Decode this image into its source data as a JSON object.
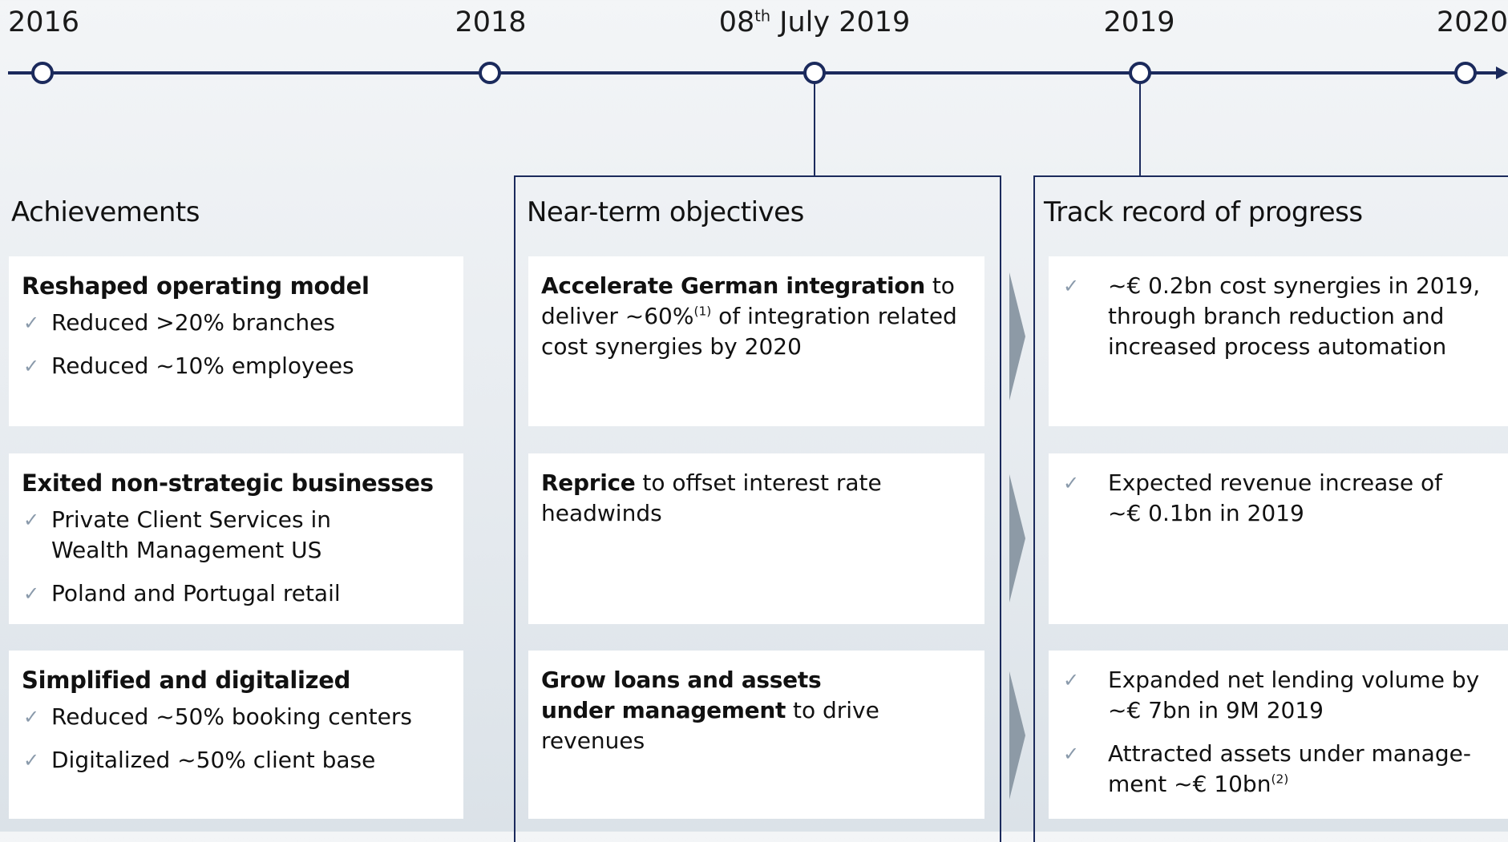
{
  "timeline": [
    {
      "label": "2016"
    },
    {
      "label": "2018"
    },
    {
      "label": "08",
      "sup": "th",
      "rest": " July 2019"
    },
    {
      "label": "2019"
    },
    {
      "label": "2020"
    }
  ],
  "achievements": {
    "title": "Achievements",
    "cards": [
      {
        "heading": "Reshaped operating model",
        "items": [
          "Reduced >20% branches",
          "Reduced ~10% employees"
        ]
      },
      {
        "heading": "Exited non-strategic businesses",
        "items": [
          "Private Client Services in Wealth Management US",
          "Poland and Portugal retail"
        ]
      },
      {
        "heading": "Simplified and digitalized",
        "items": [
          "Reduced ~50% booking centers",
          "Digitalized ~50% client base"
        ]
      }
    ]
  },
  "objectives": {
    "title": "Near-term objectives",
    "cards": [
      {
        "bold": "Accelerate German integration",
        "text": " to deliver ~60%",
        "sup": "(1)",
        "rest": " of integration related cost synergies by 2020"
      },
      {
        "bold": "Reprice",
        "text": " to offset interest rate headwinds"
      },
      {
        "bold": "Grow loans and assets under management",
        "text": " to drive revenues"
      }
    ]
  },
  "track_record": {
    "title": "Track record of progress",
    "cards": [
      {
        "items": [
          {
            "text": "~€ 0.2bn cost synergies in 2019, through branch reduction and increased process automation"
          }
        ]
      },
      {
        "items": [
          {
            "text": "Expected revenue increase of ~€ 0.1bn in 2019"
          }
        ]
      },
      {
        "items": [
          {
            "text": "Expanded net lending volume by ~€ 7bn in 9M 2019"
          },
          {
            "text": "Attracted assets under manage-ment ~€ 10bn",
            "sup": "(2)"
          }
        ]
      }
    ]
  }
}
